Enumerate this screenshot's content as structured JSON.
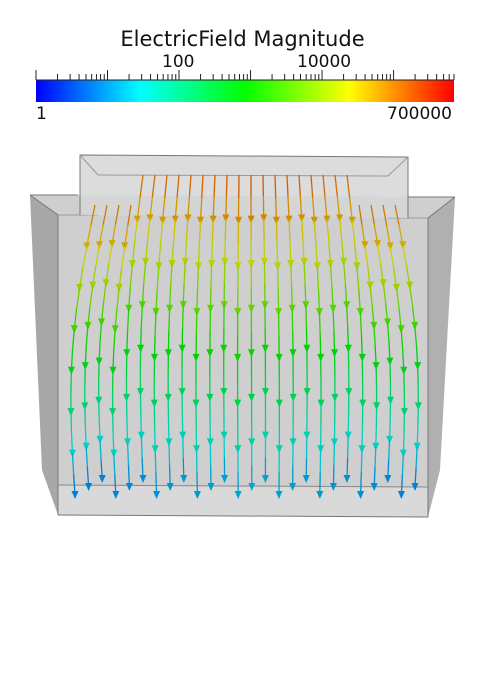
{
  "chart_data": {
    "type": "streamlines",
    "colorbar": {
      "title": "ElectricField Magnitude",
      "scale": "log",
      "range": [
        1,
        700000
      ],
      "range_labels": [
        "1",
        "700000"
      ],
      "major_ticks": [
        {
          "value": 100,
          "label": "100"
        },
        {
          "value": 10000,
          "label": "10000"
        }
      ],
      "colors": [
        "#0000ff",
        "#00ffff",
        "#00ff00",
        "#ffff00",
        "#ff0000"
      ]
    },
    "geometry": {
      "outer_box": "gray translucent box",
      "inner_box": "raised top electrode region"
    }
  }
}
